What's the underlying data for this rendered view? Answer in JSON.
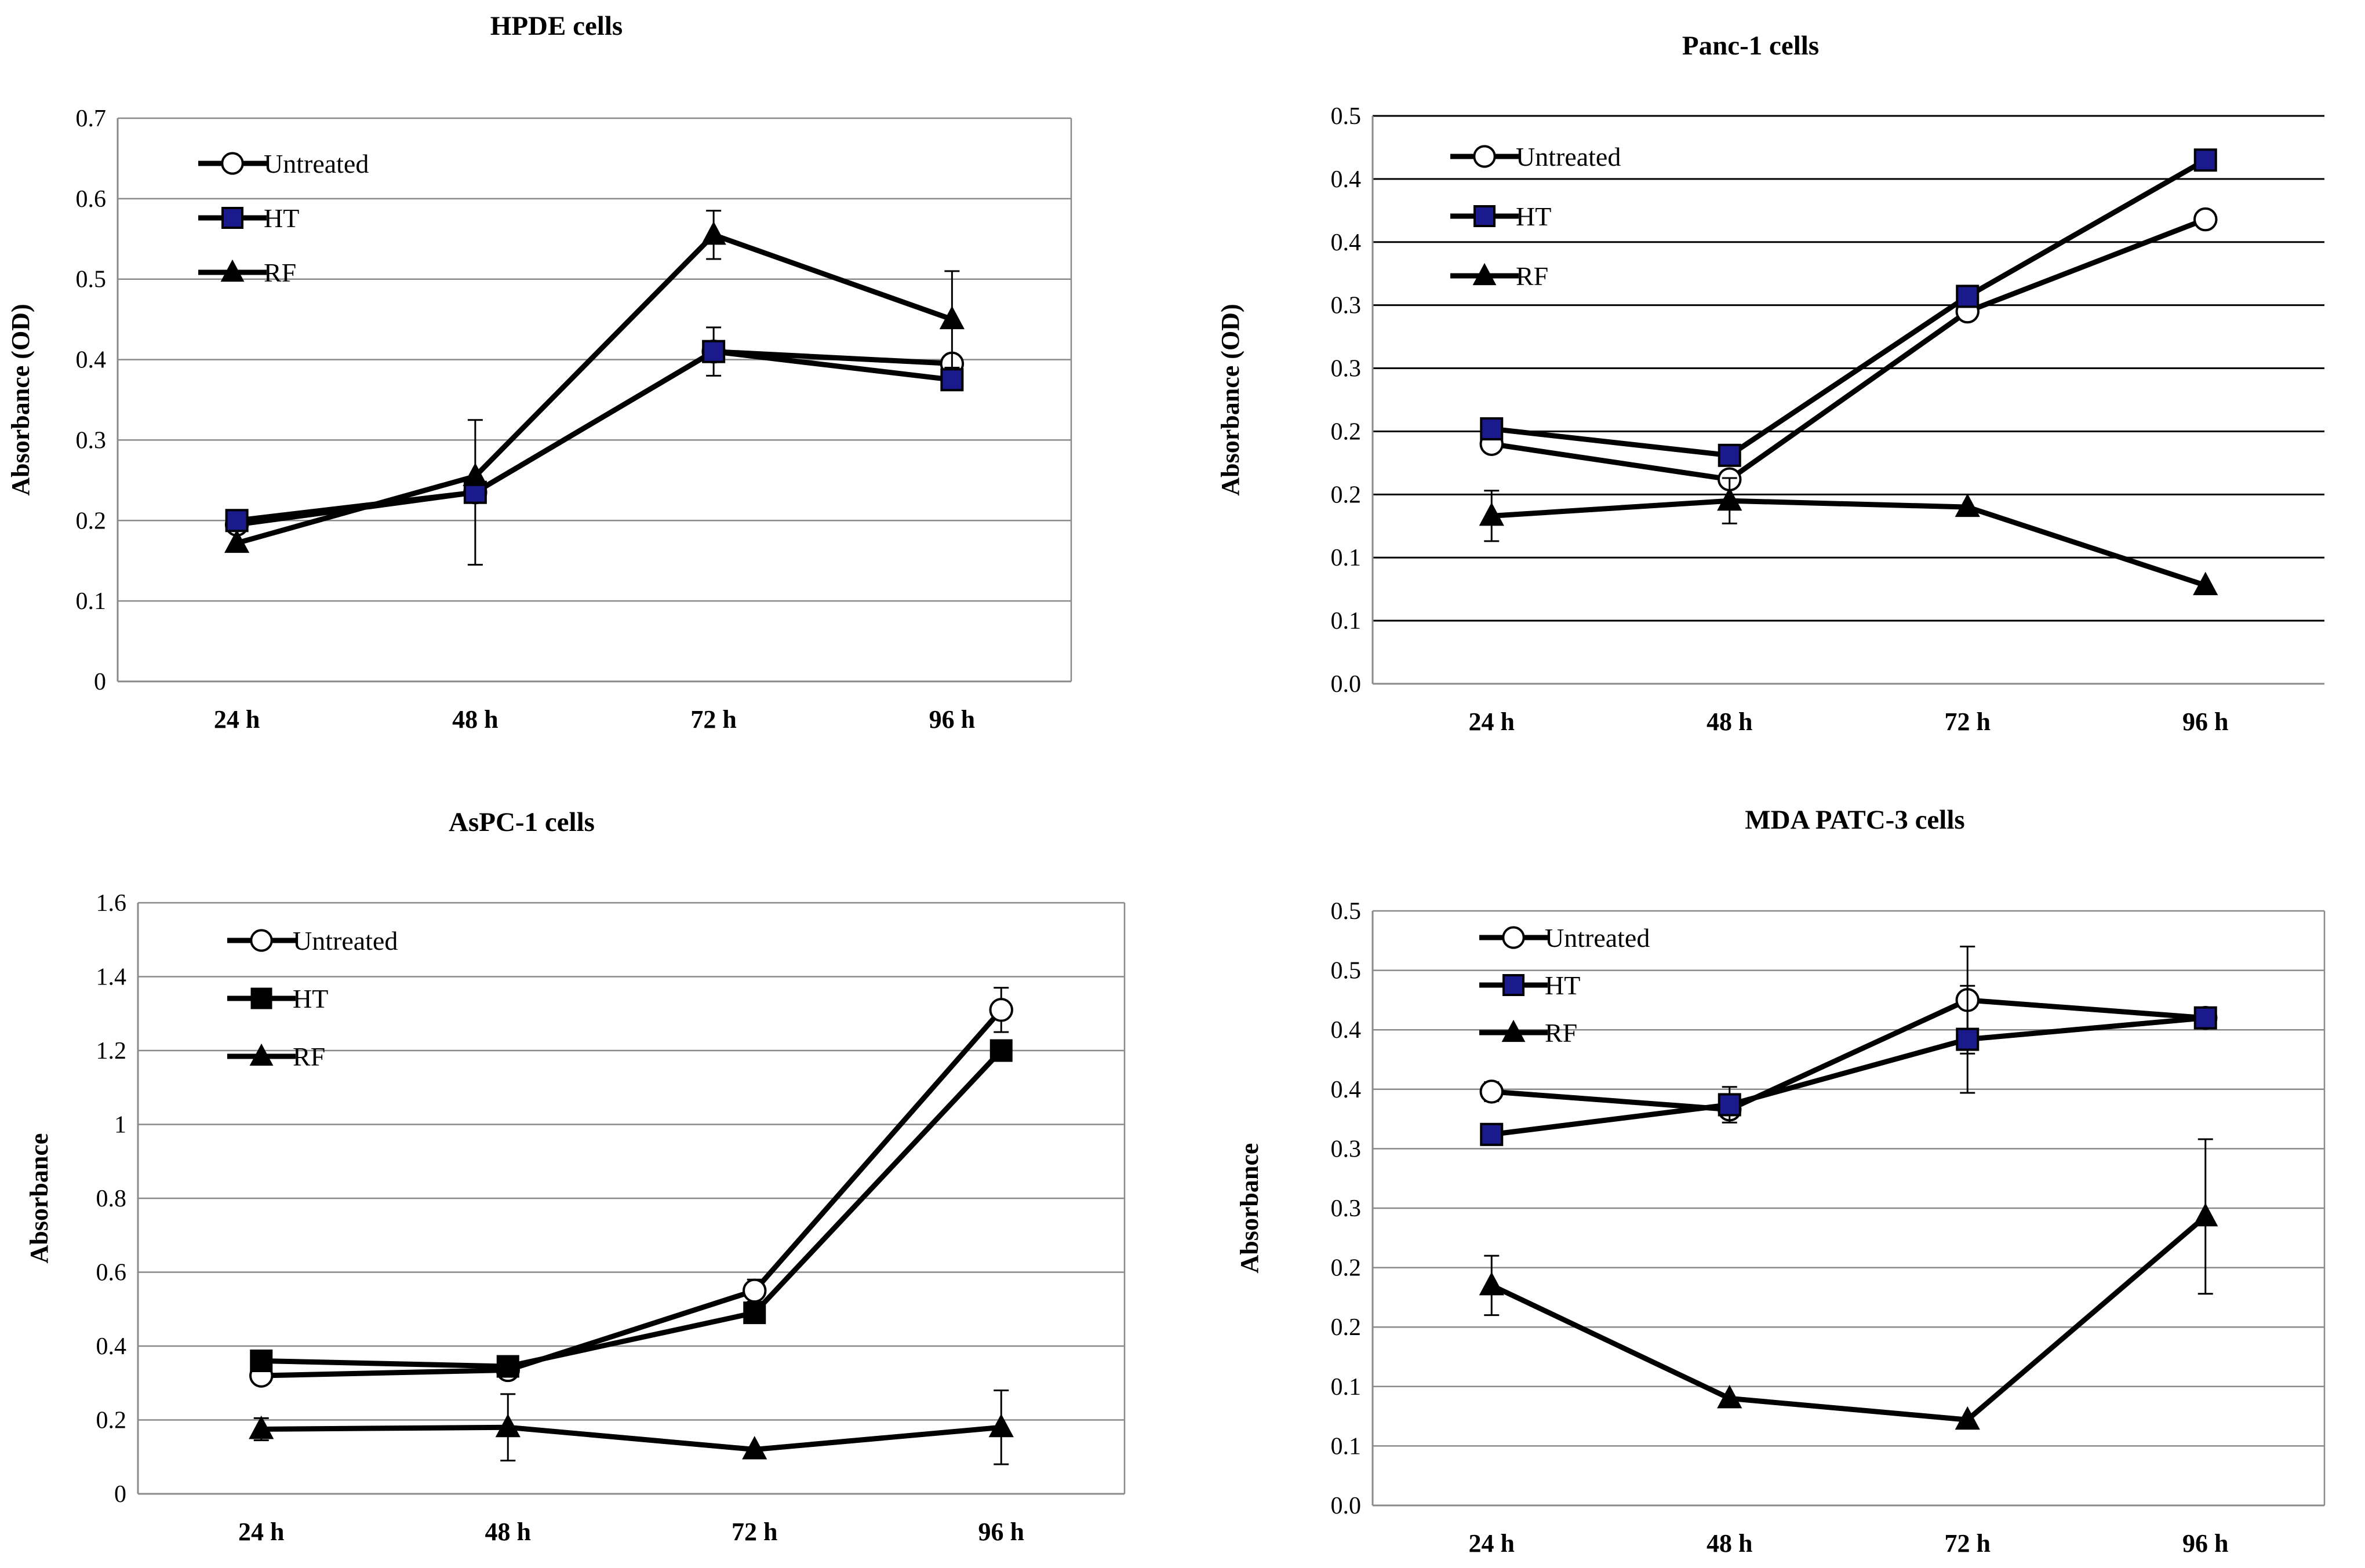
{
  "chart_data": [
    {
      "type": "line",
      "title": "HPDE cells",
      "xlabel": "",
      "ylabel": "Absorbance (OD)",
      "categories": [
        "24 h",
        "48 h",
        "72 h",
        "96 h"
      ],
      "yticks": [
        "0",
        "0.1",
        "0.2",
        "0.3",
        "0.4",
        "0.5",
        "0.6",
        "0.7"
      ],
      "ylim": [
        0,
        0.7
      ],
      "grid": true,
      "legend_position": "top-left",
      "series": [
        {
          "name": "Untreated",
          "marker": "circle-open",
          "values": [
            0.195,
            0.235,
            0.41,
            0.395
          ],
          "errors": [
            0,
            0.09,
            0.03,
            0
          ]
        },
        {
          "name": "HT",
          "marker": "square-blue",
          "values": [
            0.2,
            0.235,
            0.41,
            0.375
          ],
          "errors": [
            0,
            0,
            0,
            0
          ]
        },
        {
          "name": "RF",
          "marker": "triangle",
          "values": [
            0.172,
            0.255,
            0.555,
            0.45
          ],
          "errors": [
            0,
            0,
            0.03,
            0.06
          ]
        }
      ]
    },
    {
      "type": "line",
      "title": "Panc-1 cells",
      "xlabel": "",
      "ylabel": "Absorbance (OD)",
      "categories": [
        "24 h",
        "48 h",
        "72 h",
        "96 h"
      ],
      "yticks": [
        "0.0",
        "0.1",
        "0.1",
        "0.2",
        "0.2",
        "0.3",
        "0.3",
        "0.4",
        "0.4",
        "0.5"
      ],
      "ylim": [
        0,
        0.45
      ],
      "grid": true,
      "legend_position": "top-left",
      "series": [
        {
          "name": "Untreated",
          "marker": "circle-open",
          "values": [
            0.19,
            0.162,
            0.295,
            0.368
          ],
          "errors": [
            0,
            0,
            0,
            0
          ]
        },
        {
          "name": "HT",
          "marker": "square-blue",
          "values": [
            0.202,
            0.181,
            0.307,
            0.415
          ],
          "errors": [
            0,
            0,
            0,
            0
          ]
        },
        {
          "name": "RF",
          "marker": "triangle",
          "values": [
            0.133,
            0.145,
            0.14,
            0.078
          ],
          "errors": [
            0.02,
            0.018,
            0,
            0
          ]
        }
      ]
    },
    {
      "type": "line",
      "title": "AsPC-1 cells",
      "xlabel": "",
      "ylabel": "Absorbance",
      "categories": [
        "24 h",
        "48 h",
        "72 h",
        "96 h"
      ],
      "yticks": [
        "0",
        "0.2",
        "0.4",
        "0.6",
        "0.8",
        "1",
        "1.2",
        "1.4",
        "1.6"
      ],
      "ylim": [
        0,
        1.6
      ],
      "grid": true,
      "legend_position": "top-left",
      "series": [
        {
          "name": "Untreated",
          "marker": "circle-open",
          "values": [
            0.32,
            0.335,
            0.55,
            1.31
          ],
          "errors": [
            0,
            0,
            0.03,
            0.06
          ]
        },
        {
          "name": "HT",
          "marker": "square-black",
          "values": [
            0.36,
            0.345,
            0.49,
            1.2
          ],
          "errors": [
            0,
            0,
            0,
            0
          ]
        },
        {
          "name": "RF",
          "marker": "triangle",
          "values": [
            0.175,
            0.18,
            0.12,
            0.18
          ],
          "errors": [
            0.03,
            0.09,
            0,
            0.1
          ]
        }
      ]
    },
    {
      "type": "line",
      "title": "MDA PATC-3 cells",
      "xlabel": "",
      "ylabel": "Absorbance",
      "categories": [
        "24 h",
        "48 h",
        "72 h",
        "96 h"
      ],
      "yticks": [
        "0.0",
        "0.1",
        "0.1",
        "0.2",
        "0.2",
        "0.3",
        "0.3",
        "0.4",
        "0.4",
        "0.5",
        "0.5"
      ],
      "ylim": [
        0,
        0.5
      ],
      "grid": true,
      "legend_position": "top-left",
      "series": [
        {
          "name": "Untreated",
          "marker": "circle-open",
          "values": [
            0.348,
            0.333,
            0.425,
            0.41
          ],
          "errors": [
            0.008,
            0,
            0.045,
            0
          ]
        },
        {
          "name": "HT",
          "marker": "square-blue",
          "values": [
            0.312,
            0.337,
            0.392,
            0.41
          ],
          "errors": [
            0,
            0.015,
            0.045,
            0
          ]
        },
        {
          "name": "RF",
          "marker": "triangle",
          "values": [
            0.185,
            0.09,
            0.072,
            0.243
          ],
          "errors": [
            0.025,
            0,
            0,
            0.065
          ]
        }
      ]
    }
  ]
}
